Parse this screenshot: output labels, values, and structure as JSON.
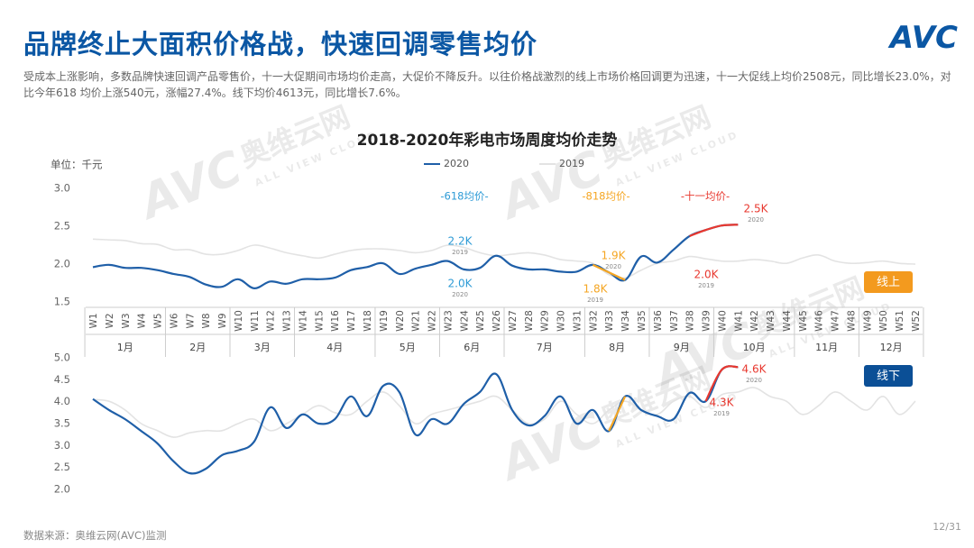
{
  "header": {
    "title": "品牌终止大面积价格战，快速回调零售均价",
    "logo": "AVC",
    "subtitle": "受成本上涨影响，多数品牌快速回调产品零售价，十一大促期间市场均价走高，大促价不降反升。以往价格战激烈的线上市场价格回调更为迅速，十一大促线上均价2508元，同比增长23.0%，对比今年618 均价上涨540元，涨幅27.4%。线下均价4613元，同比增长7.6%。"
  },
  "watermark": {
    "brand": "奥维云网",
    "en": "ALL VIEW CLOUD",
    "logo": "AVC"
  },
  "chart_data": [
    {
      "type": "line",
      "title": "2018-2020年彩电市场周度均价走势",
      "unit_label": "单位：千元",
      "categories": [
        "W1",
        "W2",
        "W3",
        "W4",
        "W5",
        "W6",
        "W7",
        "W8",
        "W9",
        "W10",
        "W11",
        "W12",
        "W13",
        "W14",
        "W15",
        "W16",
        "W17",
        "W18",
        "W19",
        "W20",
        "W21",
        "W22",
        "W23",
        "W24",
        "W25",
        "W26",
        "W27",
        "W28",
        "W29",
        "W30",
        "W31",
        "W32",
        "W33",
        "W34",
        "W35",
        "W36",
        "W37",
        "W38",
        "W39",
        "W40",
        "W41",
        "W42",
        "W43",
        "W44",
        "W45",
        "W46",
        "W47",
        "W48",
        "W49",
        "W50",
        "W51",
        "W52"
      ],
      "months": [
        "1月",
        "2月",
        "3月",
        "4月",
        "5月",
        "6月",
        "7月",
        "8月",
        "9月",
        "10月",
        "11月",
        "12月"
      ],
      "series": [
        {
          "name": "2020",
          "color": "#1f5fa8",
          "values": [
            1.96,
            1.99,
            1.95,
            1.95,
            1.92,
            1.87,
            1.83,
            1.73,
            1.7,
            1.8,
            1.68,
            1.77,
            1.74,
            1.8,
            1.8,
            1.82,
            1.92,
            1.96,
            2.01,
            1.87,
            1.94,
            1.99,
            2.04,
            1.93,
            1.95,
            2.11,
            1.98,
            1.93,
            1.93,
            1.9,
            1.9,
            1.99,
            1.89,
            1.79,
            2.1,
            2.02,
            2.19,
            2.37,
            2.45,
            2.51,
            2.52,
            null,
            null,
            null,
            null,
            null,
            null,
            null,
            null,
            null,
            null,
            null
          ],
          "highlights": [
            {
              "from": "W32",
              "to": "W34",
              "color": "#f5a623"
            },
            {
              "from": "W38",
              "to": "W41",
              "color": "#e8382f"
            }
          ]
        },
        {
          "name": "2019",
          "color": "#e3e3e3",
          "values": [
            2.33,
            2.32,
            2.31,
            2.27,
            2.26,
            2.19,
            2.19,
            2.13,
            2.13,
            2.18,
            2.25,
            2.21,
            2.15,
            2.11,
            2.08,
            2.13,
            2.18,
            2.2,
            2.2,
            2.18,
            2.15,
            2.18,
            2.25,
            2.22,
            2.15,
            2.11,
            2.13,
            2.15,
            2.12,
            2.06,
            2.04,
            2.01,
            1.86,
            1.82,
            1.92,
            2.01,
            2.04,
            2.1,
            2.07,
            2.04,
            2.04,
            2.06,
            2.04,
            2.01,
            2.08,
            2.12,
            2.04,
            2.01,
            2.02,
            2.04,
            2.01,
            2.0
          ]
        }
      ],
      "ylim": [
        1.5,
        3.0
      ],
      "yticks": [
        1.5,
        {
          "value": 2,
          "label": "2.0"
        },
        2.5,
        {
          "value": 3,
          "label": "3.0"
        }
      ],
      "grid": false,
      "badge": {
        "text": "线上",
        "color": "#f39a1e"
      },
      "annotations": [
        {
          "text": "-618均价-",
          "color": "#2e9bd6"
        },
        {
          "text": "-818均价-",
          "color": "#f5a623"
        },
        {
          "text": "-十一均价-",
          "color": "#e8382f"
        }
      ],
      "callouts": [
        {
          "text": "2.2K",
          "note": "2019",
          "color": "#2e9bd6"
        },
        {
          "text": "2.0K",
          "note": "2020",
          "color": "#2e9bd6"
        },
        {
          "text": "1.9K",
          "note": "2020",
          "color": "#f5a623"
        },
        {
          "text": "1.8K",
          "note": "2019",
          "color": "#f5a623"
        },
        {
          "text": "2.5K",
          "note": "2020",
          "color": "#e8382f"
        },
        {
          "text": "2.0K",
          "note": "2019",
          "color": "#e8382f"
        }
      ]
    },
    {
      "type": "line",
      "series": [
        {
          "color": "#1f5fa8",
          "values": [
            4.06,
            3.81,
            3.6,
            3.33,
            3.05,
            2.64,
            2.37,
            2.47,
            2.78,
            2.88,
            3.09,
            3.87,
            3.4,
            3.71,
            3.5,
            3.6,
            4.12,
            3.67,
            4.36,
            4.22,
            3.25,
            3.6,
            3.5,
            3.95,
            4.22,
            4.63,
            3.81,
            3.46,
            3.67,
            4.12,
            3.5,
            3.81,
            3.33,
            4.12,
            3.81,
            3.67,
            3.6,
            4.2,
            4.01,
            4.73,
            4.79,
            null,
            null,
            null,
            null,
            null,
            null,
            null,
            null,
            null,
            null,
            null
          ],
          "highlights": [
            {
              "from": "W33",
              "to": "W34",
              "color": "#f5a623"
            },
            {
              "from": "W39",
              "to": "W41",
              "color": "#e8382f"
            }
          ]
        },
        {
          "color": "#e3e3e3",
          "values": [
            4.05,
            4.01,
            3.81,
            3.5,
            3.34,
            3.19,
            3.29,
            3.34,
            3.34,
            3.5,
            3.6,
            3.34,
            3.5,
            3.71,
            3.91,
            3.75,
            3.71,
            4.01,
            4.22,
            3.91,
            3.5,
            3.71,
            3.81,
            3.91,
            4.01,
            4.12,
            3.81,
            3.5,
            3.6,
            4.01,
            3.71,
            3.5,
            3.81,
            4.01,
            3.81,
            3.71,
            4.01,
            4.12,
            3.87,
            4.16,
            4.22,
            4.32,
            4.12,
            4.01,
            3.71,
            3.91,
            4.22,
            4.01,
            3.81,
            4.12,
            3.71,
            4.01
          ]
        }
      ],
      "ylim": [
        2.0,
        5.0
      ],
      "yticks": [
        {
          "value": 2,
          "label": "2.0"
        },
        2.5,
        {
          "value": 3,
          "label": "3.0"
        },
        3.5,
        {
          "value": 4,
          "label": "4.0"
        },
        4.5,
        {
          "value": 5,
          "label": "5.0"
        }
      ],
      "grid": false,
      "badge": {
        "text": "线下",
        "color": "#0b4f96"
      },
      "callouts": [
        {
          "text": "4.6K",
          "note": "2020",
          "color": "#e8382f"
        },
        {
          "text": "4.3K",
          "note": "2019",
          "color": "#e8382f"
        }
      ]
    }
  ],
  "footer": {
    "source": "数据来源：奥维云网(AVC)监测",
    "page": "12/31"
  }
}
